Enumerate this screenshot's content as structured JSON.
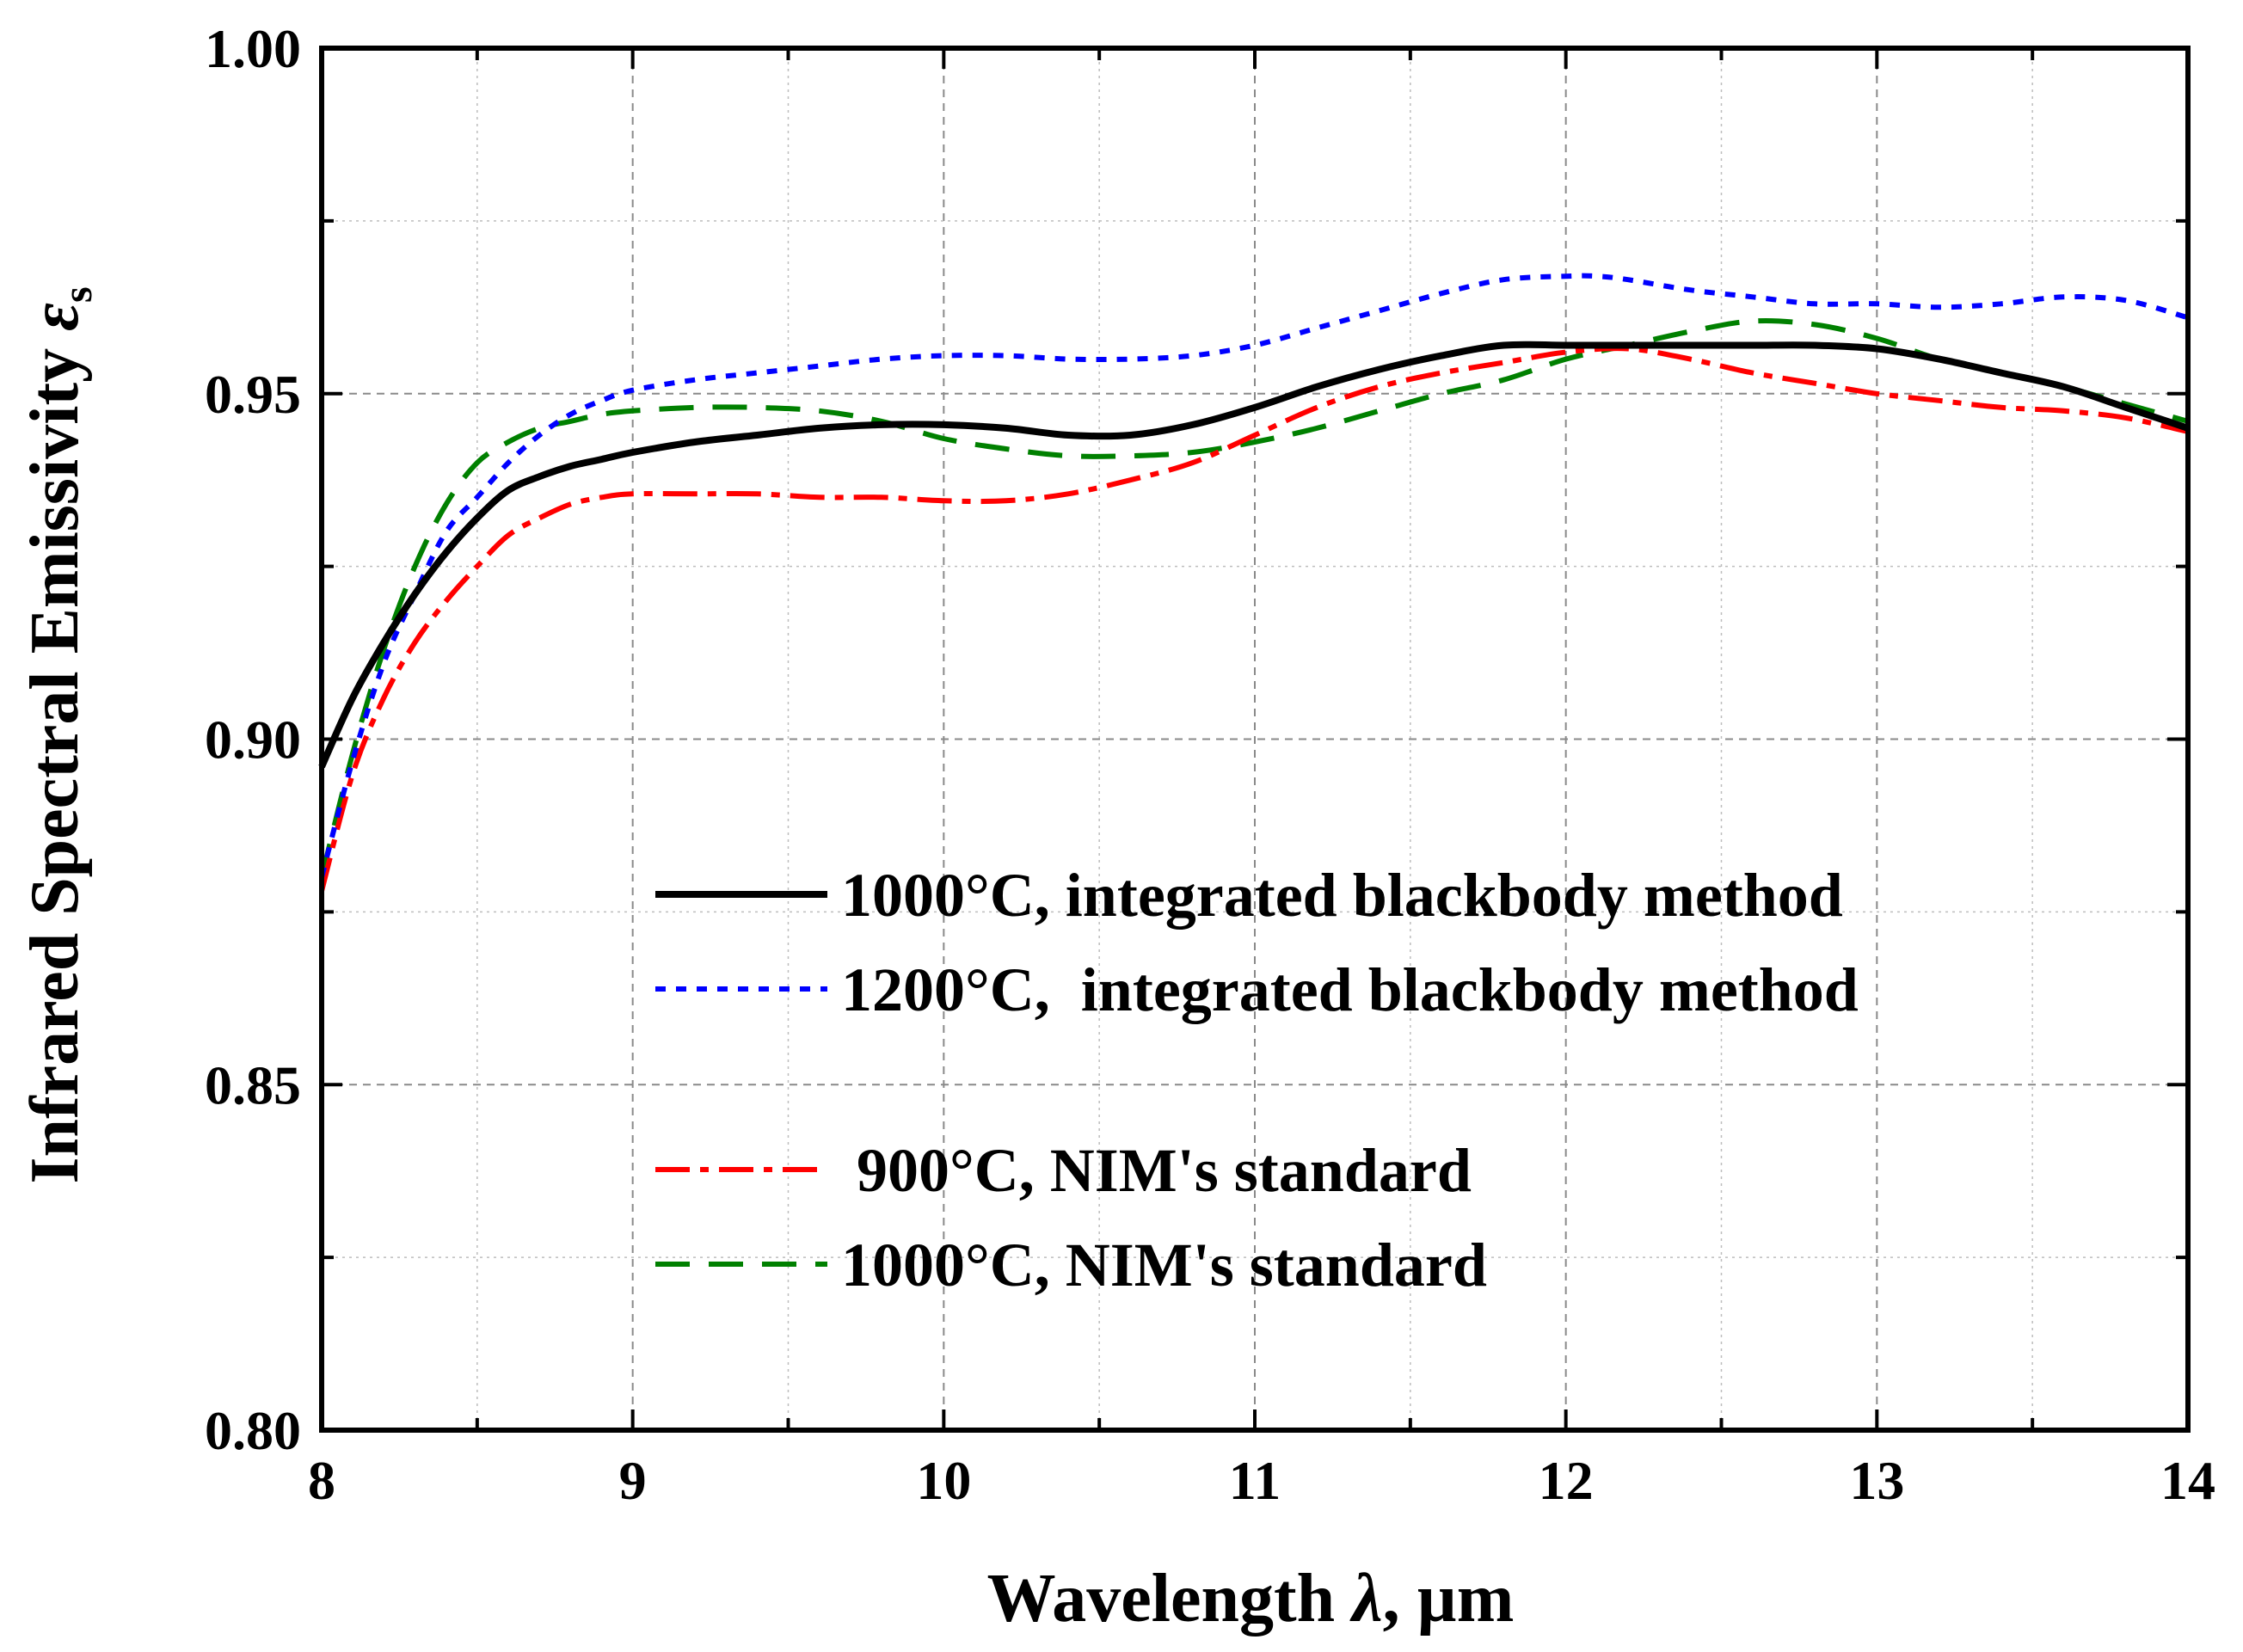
{
  "chart_data": {
    "type": "line",
    "xlabel_main": "Wavelength ",
    "xlabel_symbol": "λ",
    "xlabel_unit": ", µm",
    "ylabel_main": "Infrared Spectral Emissivity ",
    "ylabel_symbol": "ε",
    "ylabel_sub": "s",
    "xlim": [
      8,
      14
    ],
    "ylim": [
      0.8,
      1.0
    ],
    "xticks": [
      8,
      9,
      10,
      11,
      12,
      13,
      14
    ],
    "yticks": [
      0.8,
      0.85,
      0.9,
      0.95,
      1.0
    ],
    "ytick_labels": [
      "0.80",
      "0.85",
      "0.90",
      "0.95",
      "1.00"
    ],
    "grid": true,
    "legend_position": "lower-center",
    "series": [
      {
        "name": "1000°C, integrated blackbody method",
        "color": "#000000",
        "dash": "solid",
        "x": [
          8.0,
          8.1,
          8.2,
          8.3,
          8.4,
          8.5,
          8.6,
          8.7,
          8.8,
          8.9,
          9.0,
          9.2,
          9.4,
          9.6,
          9.8,
          10.0,
          10.2,
          10.4,
          10.6,
          10.8,
          11.0,
          11.2,
          11.4,
          11.6,
          11.8,
          12.0,
          12.2,
          12.4,
          12.6,
          12.8,
          13.0,
          13.2,
          13.4,
          13.6,
          13.8,
          14.0
        ],
        "y": [
          0.896,
          0.906,
          0.914,
          0.921,
          0.927,
          0.932,
          0.936,
          0.938,
          0.9395,
          0.9405,
          0.9415,
          0.943,
          0.944,
          0.945,
          0.9455,
          0.9455,
          0.945,
          0.944,
          0.944,
          0.9455,
          0.948,
          0.951,
          0.9535,
          0.9555,
          0.957,
          0.957,
          0.957,
          0.957,
          0.957,
          0.957,
          0.9565,
          0.955,
          0.953,
          0.951,
          0.948,
          0.945
        ]
      },
      {
        "name": "1200°C,  integrated blackbody method",
        "color": "#0000ff",
        "dash": "dot",
        "x": [
          8.0,
          8.1,
          8.2,
          8.3,
          8.4,
          8.5,
          8.6,
          8.7,
          8.8,
          8.9,
          9.0,
          9.2,
          9.4,
          9.6,
          9.8,
          10.0,
          10.2,
          10.4,
          10.6,
          10.8,
          11.0,
          11.2,
          11.4,
          11.6,
          11.8,
          12.0,
          12.1,
          12.2,
          12.4,
          12.6,
          12.8,
          13.0,
          13.2,
          13.4,
          13.6,
          13.8,
          14.0
        ],
        "y": [
          0.88,
          0.897,
          0.911,
          0.921,
          0.93,
          0.935,
          0.94,
          0.944,
          0.947,
          0.949,
          0.9505,
          0.952,
          0.953,
          0.954,
          0.955,
          0.9555,
          0.9555,
          0.955,
          0.955,
          0.9555,
          0.957,
          0.9595,
          0.962,
          0.9645,
          0.9665,
          0.967,
          0.967,
          0.9665,
          0.965,
          0.964,
          0.963,
          0.963,
          0.9625,
          0.963,
          0.964,
          0.9635,
          0.961
        ]
      },
      {
        "name": " 900°C, NIM's standard",
        "color": "#ff0000",
        "dash": "dashdot",
        "x": [
          8.0,
          8.1,
          8.2,
          8.3,
          8.4,
          8.5,
          8.6,
          8.7,
          8.8,
          8.9,
          9.0,
          9.2,
          9.4,
          9.6,
          9.8,
          10.0,
          10.2,
          10.4,
          10.6,
          10.8,
          11.0,
          11.2,
          11.4,
          11.6,
          11.8,
          12.0,
          12.2,
          12.4,
          12.6,
          12.8,
          13.0,
          13.2,
          13.4,
          13.6,
          13.8,
          14.0
        ],
        "y": [
          0.878,
          0.895,
          0.906,
          0.914,
          0.92,
          0.925,
          0.9295,
          0.932,
          0.934,
          0.935,
          0.9355,
          0.9355,
          0.9355,
          0.935,
          0.935,
          0.9345,
          0.9345,
          0.9355,
          0.9375,
          0.94,
          0.944,
          0.948,
          0.951,
          0.953,
          0.9545,
          0.956,
          0.9565,
          0.955,
          0.953,
          0.9515,
          0.95,
          0.949,
          0.948,
          0.9475,
          0.9465,
          0.9445
        ]
      },
      {
        "name": "1000°C, NIM's standard",
        "color": "#008000",
        "dash": "dash",
        "x": [
          8.0,
          8.1,
          8.2,
          8.3,
          8.4,
          8.5,
          8.6,
          8.7,
          8.8,
          8.9,
          9.0,
          9.2,
          9.4,
          9.6,
          9.8,
          10.0,
          10.2,
          10.4,
          10.6,
          10.8,
          11.0,
          11.2,
          11.4,
          11.6,
          11.8,
          12.0,
          12.2,
          12.4,
          12.6,
          12.8,
          13.0,
          13.2,
          13.4,
          13.6,
          13.8,
          14.0
        ],
        "y": [
          0.88,
          0.898,
          0.913,
          0.925,
          0.934,
          0.94,
          0.943,
          0.945,
          0.946,
          0.947,
          0.9475,
          0.948,
          0.948,
          0.9475,
          0.946,
          0.9435,
          0.942,
          0.941,
          0.941,
          0.9415,
          0.943,
          0.945,
          0.9475,
          0.95,
          0.952,
          0.955,
          0.957,
          0.959,
          0.9605,
          0.96,
          0.958,
          0.955,
          0.953,
          0.951,
          0.9485,
          0.946
        ]
      }
    ]
  }
}
